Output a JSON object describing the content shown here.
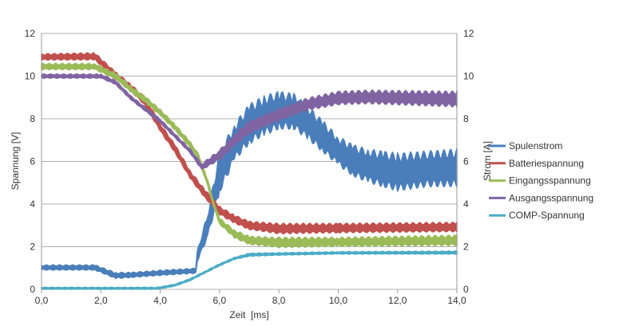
{
  "chart_data": {
    "type": "line",
    "title": "",
    "xlabel": "Zeit  [ms]",
    "ylabel": "Spannung [V]",
    "y2label": "Strom [A]",
    "xlim": [
      0,
      14
    ],
    "ylim": [
      0,
      12
    ],
    "y2lim": [
      0,
      12
    ],
    "xticks": [
      "0,0",
      "2,0",
      "4,0",
      "6,0",
      "8,0",
      "10,0",
      "12,0",
      "14,0"
    ],
    "yticks": [
      "0",
      "2",
      "4",
      "6",
      "8",
      "10",
      "12"
    ],
    "y2ticks": [
      "0",
      "2",
      "4",
      "6",
      "8",
      "10",
      "12"
    ],
    "grid": "horizontal",
    "legend": "right",
    "series_point_format": [
      "x_ms",
      "y_min",
      "y_max"
    ],
    "series": [
      {
        "name": "Spulenstrom",
        "axis": "right",
        "color": "#4a7ebb",
        "points": [
          [
            0,
            0.9,
            1.15
          ],
          [
            1.8,
            0.9,
            1.15
          ],
          [
            2.5,
            0.5,
            0.8
          ],
          [
            3,
            0.55,
            0.8
          ],
          [
            4,
            0.65,
            0.9
          ],
          [
            5.2,
            0.75,
            1.0
          ],
          [
            5.25,
            1.3,
            1.8
          ],
          [
            5.6,
            2.4,
            3.6
          ],
          [
            6,
            4.5,
            6.5
          ],
          [
            6.5,
            6.0,
            7.8
          ],
          [
            7,
            6.8,
            8.7
          ],
          [
            7.5,
            7.2,
            9.1
          ],
          [
            8,
            7.5,
            9.3
          ],
          [
            8.5,
            7.5,
            9.2
          ],
          [
            9,
            7.0,
            8.6
          ],
          [
            9.5,
            6.4,
            7.9
          ],
          [
            10,
            5.8,
            7.2
          ],
          [
            10.5,
            5.3,
            6.8
          ],
          [
            11,
            5.0,
            6.6
          ],
          [
            11.5,
            4.8,
            6.5
          ],
          [
            12,
            4.6,
            6.4
          ],
          [
            13,
            4.8,
            6.5
          ],
          [
            14,
            4.8,
            6.6
          ]
        ]
      },
      {
        "name": "Batteriespannung",
        "axis": "left",
        "color": "#c0504d",
        "points": [
          [
            0,
            10.75,
            11.05
          ],
          [
            1.8,
            10.75,
            11.1
          ],
          [
            2.5,
            9.85,
            10.2
          ],
          [
            3,
            9.3,
            9.65
          ],
          [
            3.5,
            8.6,
            9.0
          ],
          [
            4,
            7.4,
            7.8
          ],
          [
            4.5,
            6.4,
            6.8
          ],
          [
            5,
            5.2,
            5.6
          ],
          [
            5.5,
            4.3,
            4.7
          ],
          [
            6,
            3.5,
            3.9
          ],
          [
            6.5,
            3.1,
            3.5
          ],
          [
            7,
            2.8,
            3.2
          ],
          [
            8,
            2.6,
            3.1
          ],
          [
            10,
            2.65,
            3.1
          ],
          [
            14,
            2.7,
            3.15
          ]
        ]
      },
      {
        "name": "Eingangsspannung",
        "axis": "left",
        "color": "#9bbb59",
        "points": [
          [
            0,
            10.3,
            10.6
          ],
          [
            1.8,
            10.3,
            10.6
          ],
          [
            2.5,
            9.85,
            10.15
          ],
          [
            3,
            9.25,
            9.55
          ],
          [
            3.5,
            8.75,
            9.05
          ],
          [
            4,
            8.15,
            8.45
          ],
          [
            4.5,
            7.45,
            7.75
          ],
          [
            5,
            6.65,
            6.95
          ],
          [
            5.3,
            6.05,
            6.35
          ],
          [
            5.6,
            4.85,
            5.15
          ],
          [
            5.8,
            3.85,
            4.15
          ],
          [
            6,
            3.05,
            3.35
          ],
          [
            6.5,
            2.4,
            2.8
          ],
          [
            7,
            2.1,
            2.5
          ],
          [
            8,
            1.95,
            2.45
          ],
          [
            10,
            2.0,
            2.45
          ],
          [
            14,
            2.05,
            2.55
          ]
        ]
      },
      {
        "name": "Ausgangsspannung",
        "axis": "left",
        "color": "#8064a2",
        "points": [
          [
            0,
            9.9,
            10.1
          ],
          [
            2,
            9.9,
            10.1
          ],
          [
            2.5,
            9.6,
            9.8
          ],
          [
            3,
            8.9,
            9.1
          ],
          [
            4,
            7.8,
            8.0
          ],
          [
            5,
            6.4,
            6.6
          ],
          [
            5.4,
            5.6,
            5.9
          ],
          [
            6,
            6.05,
            6.55
          ],
          [
            6.5,
            6.7,
            7.3
          ],
          [
            7,
            7.3,
            7.9
          ],
          [
            8,
            7.9,
            8.5
          ],
          [
            9,
            8.4,
            9.0
          ],
          [
            10,
            8.65,
            9.3
          ],
          [
            11,
            8.7,
            9.35
          ],
          [
            14,
            8.55,
            9.3
          ]
        ]
      },
      {
        "name": "COMP-Spannung",
        "axis": "left",
        "color": "#4bacc6",
        "points": [
          [
            0,
            0.0,
            0.1
          ],
          [
            3.9,
            0.0,
            0.1
          ],
          [
            4.5,
            0.15,
            0.25
          ],
          [
            5,
            0.4,
            0.5
          ],
          [
            5.5,
            0.75,
            0.85
          ],
          [
            6,
            1.1,
            1.2
          ],
          [
            6.5,
            1.4,
            1.5
          ],
          [
            7,
            1.55,
            1.7
          ],
          [
            8,
            1.6,
            1.72
          ],
          [
            10,
            1.65,
            1.77
          ],
          [
            14,
            1.65,
            1.8
          ]
        ]
      }
    ]
  }
}
